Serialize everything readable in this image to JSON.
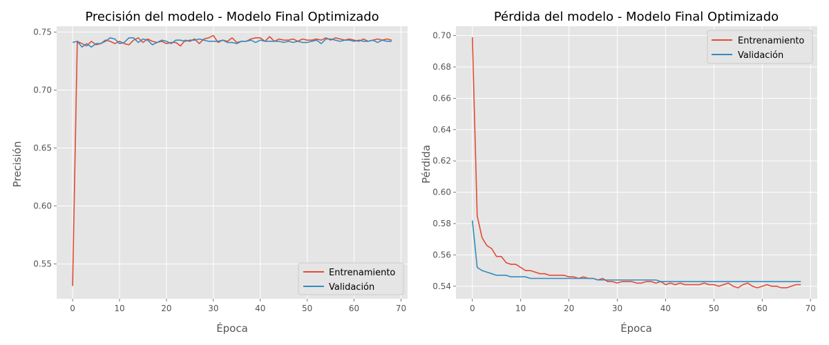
{
  "colors": {
    "train": "#e24a33",
    "validation": "#348abd"
  },
  "chart_data": [
    {
      "type": "line",
      "title": "Precisión del modelo - Modelo Final Optimizado",
      "xlabel": "Época",
      "ylabel": "Precisión",
      "xlim": [
        -3.4,
        71.4
      ],
      "ylim": [
        0.52,
        0.755
      ],
      "xticks": [
        0,
        10,
        20,
        30,
        40,
        50,
        60,
        70
      ],
      "yticks": [
        0.55,
        0.6,
        0.65,
        0.7,
        0.75
      ],
      "ytick_labels": [
        "0.55",
        "0.60",
        "0.65",
        "0.70",
        "0.75"
      ],
      "grid": true,
      "legend": "lower-right",
      "series": [
        {
          "name": "Entrenamiento",
          "color": "#e24a33",
          "values": [
            0.531,
            0.742,
            0.74,
            0.738,
            0.742,
            0.739,
            0.74,
            0.743,
            0.742,
            0.74,
            0.742,
            0.74,
            0.739,
            0.743,
            0.745,
            0.741,
            0.744,
            0.742,
            0.741,
            0.742,
            0.74,
            0.741,
            0.741,
            0.738,
            0.743,
            0.742,
            0.744,
            0.74,
            0.744,
            0.745,
            0.747,
            0.741,
            0.743,
            0.742,
            0.745,
            0.741,
            0.742,
            0.742,
            0.744,
            0.745,
            0.745,
            0.742,
            0.746,
            0.742,
            0.744,
            0.743,
            0.743,
            0.744,
            0.742,
            0.744,
            0.743,
            0.743,
            0.744,
            0.743,
            0.745,
            0.743,
            0.745,
            0.744,
            0.743,
            0.744,
            0.743,
            0.742,
            0.744,
            0.742,
            0.743,
            0.744,
            0.743,
            0.744,
            0.743
          ]
        },
        {
          "name": "Validación",
          "color": "#348abd",
          "values": [
            0.741,
            0.742,
            0.737,
            0.74,
            0.737,
            0.74,
            0.74,
            0.742,
            0.745,
            0.744,
            0.74,
            0.741,
            0.745,
            0.745,
            0.741,
            0.744,
            0.743,
            0.739,
            0.741,
            0.743,
            0.742,
            0.74,
            0.743,
            0.743,
            0.742,
            0.743,
            0.743,
            0.744,
            0.743,
            0.742,
            0.742,
            0.742,
            0.743,
            0.741,
            0.741,
            0.74,
            0.742,
            0.742,
            0.743,
            0.741,
            0.743,
            0.742,
            0.742,
            0.742,
            0.742,
            0.741,
            0.742,
            0.741,
            0.742,
            0.741,
            0.741,
            0.742,
            0.743,
            0.74,
            0.744,
            0.744,
            0.743,
            0.742,
            0.743,
            0.743,
            0.742,
            0.743,
            0.742,
            0.742,
            0.743,
            0.741,
            0.743,
            0.742,
            0.742
          ]
        }
      ]
    },
    {
      "type": "line",
      "title": "Pérdida del modelo - Modelo Final Optimizado",
      "xlabel": "Época",
      "ylabel": "Pérdida",
      "xlim": [
        -3.4,
        71.4
      ],
      "ylim": [
        0.532,
        0.706
      ],
      "xticks": [
        0,
        10,
        20,
        30,
        40,
        50,
        60,
        70
      ],
      "yticks": [
        0.54,
        0.56,
        0.58,
        0.6,
        0.62,
        0.64,
        0.66,
        0.68,
        0.7
      ],
      "ytick_labels": [
        "0.54",
        "0.56",
        "0.58",
        "0.60",
        "0.62",
        "0.64",
        "0.66",
        "0.68",
        "0.70"
      ],
      "grid": true,
      "legend": "upper-right",
      "series": [
        {
          "name": "Entrenamiento",
          "color": "#e24a33",
          "values": [
            0.699,
            0.585,
            0.571,
            0.566,
            0.564,
            0.559,
            0.559,
            0.555,
            0.554,
            0.554,
            0.552,
            0.55,
            0.55,
            0.549,
            0.548,
            0.548,
            0.547,
            0.547,
            0.547,
            0.547,
            0.546,
            0.546,
            0.545,
            0.546,
            0.545,
            0.545,
            0.544,
            0.545,
            0.543,
            0.543,
            0.542,
            0.543,
            0.543,
            0.543,
            0.542,
            0.542,
            0.543,
            0.543,
            0.542,
            0.543,
            0.541,
            0.542,
            0.541,
            0.542,
            0.541,
            0.541,
            0.541,
            0.541,
            0.542,
            0.541,
            0.541,
            0.54,
            0.541,
            0.542,
            0.54,
            0.539,
            0.541,
            0.542,
            0.54,
            0.539,
            0.54,
            0.541,
            0.54,
            0.54,
            0.539,
            0.539,
            0.54,
            0.541,
            0.541
          ]
        },
        {
          "name": "Validación",
          "color": "#348abd",
          "values": [
            0.582,
            0.552,
            0.55,
            0.549,
            0.548,
            0.547,
            0.547,
            0.547,
            0.546,
            0.546,
            0.546,
            0.546,
            0.545,
            0.545,
            0.545,
            0.545,
            0.545,
            0.545,
            0.545,
            0.545,
            0.545,
            0.545,
            0.545,
            0.545,
            0.545,
            0.545,
            0.544,
            0.544,
            0.544,
            0.544,
            0.544,
            0.544,
            0.544,
            0.544,
            0.544,
            0.544,
            0.544,
            0.544,
            0.544,
            0.543,
            0.543,
            0.543,
            0.543,
            0.543,
            0.543,
            0.543,
            0.543,
            0.543,
            0.543,
            0.543,
            0.543,
            0.543,
            0.543,
            0.543,
            0.543,
            0.543,
            0.543,
            0.543,
            0.543,
            0.543,
            0.543,
            0.543,
            0.543,
            0.543,
            0.543,
            0.543,
            0.543,
            0.543,
            0.543
          ]
        }
      ]
    }
  ]
}
